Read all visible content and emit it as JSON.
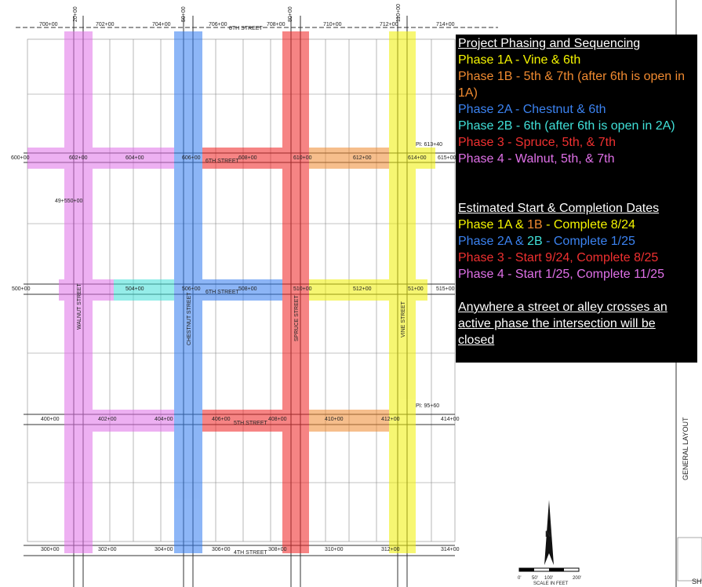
{
  "legend": {
    "phasing_title": "Project Phasing and Sequencing",
    "phasing": [
      [
        {
          "text": "Phase 1A - Vine & 6th",
          "color": "#f5f500"
        }
      ],
      [
        {
          "text": "Phase 1B - 5th & 7th (after 6th is open in 1A)",
          "color": "#f08a30"
        }
      ],
      [
        {
          "text": "Phase 2A - Chestnut & 6th",
          "color": "#3b82f0"
        }
      ],
      [
        {
          "text": "Phase 2B - 6th (after 6th is open in 2A)",
          "color": "#40e0d8"
        }
      ],
      [
        {
          "text": "Phase 3 - Spruce, 5th, & 7th",
          "color": "#f03030"
        }
      ],
      [
        {
          "text": "Phase 4 - Walnut, 5th, & 7th",
          "color": "#e070e8"
        }
      ]
    ],
    "dates_title": "Estimated Start & Completion Dates",
    "dates": [
      [
        {
          "text": "Phase 1A & ",
          "color": "#f5f500"
        },
        {
          "text": "1B",
          "color": "#f08a30"
        },
        {
          "text": " - Complete 8/24",
          "color": "#f5f500"
        }
      ],
      [
        {
          "text": "Phase 2A & ",
          "color": "#3b82f0"
        },
        {
          "text": "2B",
          "color": "#40e0d8"
        },
        {
          "text": " - Complete 1/25",
          "color": "#3b82f0"
        }
      ],
      [
        {
          "text": "Phase 3 - Start 9/24, Complete 8/25",
          "color": "#f03030"
        }
      ],
      [
        {
          "text": "Phase 4 - Start 1/25, Complete 11/25",
          "color": "#e070e8"
        }
      ]
    ],
    "note": "Anywhere a street or alley crosses an active phase the intersection will be closed"
  },
  "map": {
    "streets": [
      "8TH STREET",
      "6TH STREET",
      "6TH STREET",
      "5TH STREET",
      "4TH STREET",
      "WALNUT STREET",
      "CHESTNUT STREET",
      "SPRUCE STREET",
      "VINE STREET"
    ],
    "top_stations": [
      "700+00",
      "702+00",
      "704+00",
      "706+00",
      "708+00",
      "710+00",
      "712+00",
      "714+00"
    ],
    "row600": [
      "600+00",
      "602+00",
      "604+00",
      "606+00",
      "608+00",
      "610+00",
      "612+00",
      "614+00",
      "615+00"
    ],
    "row500": [
      "500+00",
      "504+00",
      "506+00",
      "508+00",
      "510+00",
      "512+00",
      "51+00",
      "515+00"
    ],
    "row400": [
      "400+00",
      "402+00",
      "404+00",
      "406+00",
      "408+00",
      "410+00",
      "412+00",
      "414+00"
    ],
    "row300": [
      "300+00",
      "302+00",
      "304+00",
      "306+00",
      "308+00",
      "310+00",
      "312+00",
      "314+00"
    ],
    "col_tops": [
      "20+00",
      "50+00",
      "80+00",
      "110+00"
    ],
    "notes": [
      "PI: 613+40",
      "PI: 95+60",
      "49+550+00"
    ]
  },
  "title_block": {
    "sheet_title": "GENERAL LAYOUT",
    "sheet": "SH",
    "north": "N",
    "scale_title": "SCALE IN FEET",
    "scale_marks": [
      "0'",
      "50'",
      "100'",
      "200'"
    ]
  }
}
